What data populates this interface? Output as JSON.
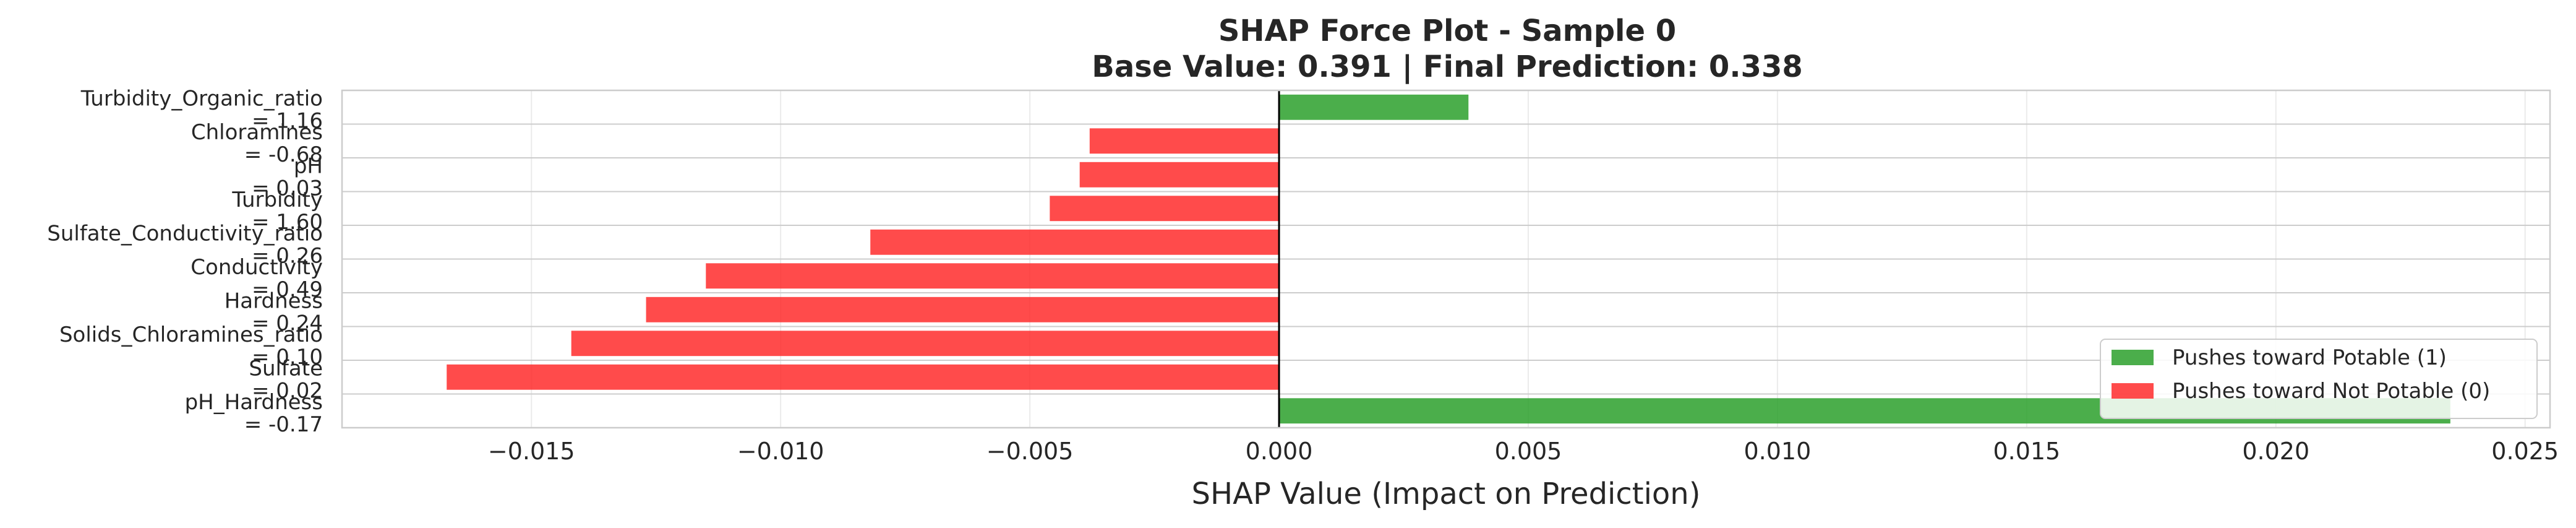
{
  "chart_data": {
    "type": "bar",
    "orientation": "horizontal",
    "title_line1": "SHAP Force Plot - Sample 0",
    "title_line2": "Base Value: 0.391 | Final Prediction: 0.338",
    "xlabel": "SHAP Value (Impact on Prediction)",
    "ylabel": "",
    "xlim": [
      -0.0188,
      0.0255
    ],
    "xticks": [
      -0.015,
      -0.01,
      -0.005,
      0.0,
      0.005,
      0.01,
      0.015,
      0.02,
      0.025
    ],
    "xtick_labels": [
      "−0.015",
      "−0.010",
      "−0.005",
      "0.000",
      "0.005",
      "0.010",
      "0.015",
      "0.020",
      "0.025"
    ],
    "grid": true,
    "legend_position": "lower-right",
    "colors": {
      "positive": "#2ca02c",
      "negative": "#ff2b2b"
    },
    "legend": [
      {
        "label": "Pushes toward Potable (1)",
        "color": "#2ca02c"
      },
      {
        "label": "Pushes toward Not Potable (0)",
        "color": "#ff2b2b"
      }
    ],
    "bars": [
      {
        "label_line1": "Turbidity_Organic_ratio",
        "label_line2": "= 1.16",
        "value": 0.0038
      },
      {
        "label_line1": "Chloramines",
        "label_line2": "= -0.68",
        "value": -0.0038
      },
      {
        "label_line1": "pH",
        "label_line2": "= 0.03",
        "value": -0.004
      },
      {
        "label_line1": "Turbidity",
        "label_line2": "= 1.60",
        "value": -0.0046
      },
      {
        "label_line1": "Sulfate_Conductivity_ratio",
        "label_line2": "= 0.26",
        "value": -0.0082
      },
      {
        "label_line1": "Conductivity",
        "label_line2": "= 0.49",
        "value": -0.0115
      },
      {
        "label_line1": "Hardness",
        "label_line2": "= 0.24",
        "value": -0.0127
      },
      {
        "label_line1": "Solids_Chloramines_ratio",
        "label_line2": "= 0.10",
        "value": -0.0142
      },
      {
        "label_line1": "Sulfate",
        "label_line2": "= 0.02",
        "value": -0.0167
      },
      {
        "label_line1": "pH_Hardness",
        "label_line2": "= -0.17",
        "value": 0.0235
      }
    ]
  }
}
